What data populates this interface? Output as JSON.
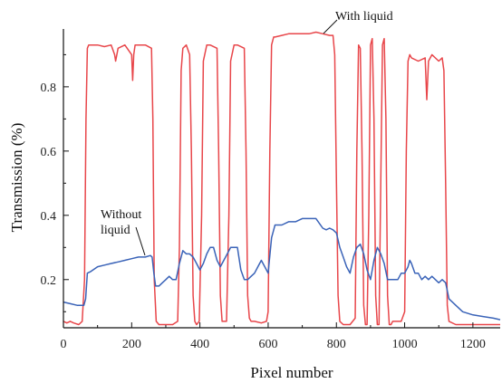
{
  "chart_data": {
    "type": "line",
    "title": "",
    "xlabel": "Pixel number",
    "ylabel": "Transmission (%)",
    "xlim": [
      0,
      1280
    ],
    "ylim": [
      0.05,
      0.98
    ],
    "xticks": [
      0,
      200,
      400,
      600,
      800,
      1000,
      1200
    ],
    "yticks": [
      0.2,
      0.4,
      0.6,
      0.8
    ],
    "xtick_labels": [
      "0",
      "200",
      "400",
      "600",
      "800",
      "1000",
      "1200"
    ],
    "ytick_labels": [
      "0.2",
      "0.4",
      "0.6",
      "0.8"
    ],
    "grid": false,
    "legend": "none",
    "annotations": [
      {
        "text": "With liquid",
        "series": "with"
      },
      {
        "lines": [
          "Without",
          "liquid"
        ],
        "series": "without"
      }
    ],
    "series": [
      {
        "key": "with",
        "color": "#e8464a",
        "x": [
          0,
          10,
          20,
          30,
          45,
          55,
          62,
          66,
          70,
          74,
          80,
          100,
          120,
          140,
          150,
          153,
          160,
          180,
          200,
          203,
          206,
          210,
          220,
          240,
          258,
          262,
          266,
          272,
          280,
          300,
          320,
          335,
          340,
          345,
          350,
          360,
          370,
          375,
          380,
          385,
          390,
          398,
          405,
          410,
          420,
          430,
          450,
          455,
          460,
          465,
          470,
          478,
          485,
          490,
          500,
          510,
          530,
          535,
          540,
          545,
          550,
          560,
          580,
          595,
          600,
          605,
          610,
          616,
          620,
          640,
          660,
          680,
          700,
          720,
          740,
          760,
          780,
          790,
          795,
          800,
          805,
          810,
          820,
          840,
          855,
          860,
          865,
          870,
          875,
          880,
          885,
          890,
          895,
          900,
          905,
          910,
          915,
          920,
          925,
          930,
          935,
          940,
          945,
          950,
          955,
          960,
          965,
          970,
          975,
          980,
          990,
          1000,
          1005,
          1010,
          1015,
          1020,
          1040,
          1060,
          1065,
          1070,
          1080,
          1100,
          1110,
          1115,
          1120,
          1125,
          1130,
          1150,
          1200,
          1250,
          1280
        ],
        "y": [
          0.07,
          0.065,
          0.07,
          0.065,
          0.06,
          0.07,
          0.2,
          0.7,
          0.92,
          0.93,
          0.93,
          0.93,
          0.925,
          0.93,
          0.9,
          0.88,
          0.92,
          0.93,
          0.9,
          0.82,
          0.9,
          0.93,
          0.93,
          0.93,
          0.92,
          0.7,
          0.2,
          0.07,
          0.06,
          0.06,
          0.06,
          0.07,
          0.3,
          0.85,
          0.92,
          0.93,
          0.9,
          0.6,
          0.15,
          0.07,
          0.06,
          0.07,
          0.4,
          0.88,
          0.93,
          0.93,
          0.92,
          0.6,
          0.15,
          0.07,
          0.07,
          0.07,
          0.4,
          0.88,
          0.93,
          0.93,
          0.92,
          0.6,
          0.15,
          0.08,
          0.07,
          0.07,
          0.065,
          0.07,
          0.1,
          0.6,
          0.93,
          0.955,
          0.955,
          0.96,
          0.965,
          0.965,
          0.965,
          0.965,
          0.97,
          0.965,
          0.96,
          0.96,
          0.9,
          0.5,
          0.15,
          0.07,
          0.06,
          0.06,
          0.08,
          0.6,
          0.93,
          0.92,
          0.6,
          0.12,
          0.06,
          0.06,
          0.4,
          0.93,
          0.95,
          0.7,
          0.15,
          0.06,
          0.06,
          0.5,
          0.93,
          0.95,
          0.7,
          0.15,
          0.06,
          0.06,
          0.07,
          0.07,
          0.07,
          0.07,
          0.07,
          0.1,
          0.6,
          0.88,
          0.9,
          0.89,
          0.88,
          0.89,
          0.76,
          0.88,
          0.9,
          0.88,
          0.89,
          0.85,
          0.5,
          0.12,
          0.07,
          0.06,
          0.06,
          0.06,
          0.06
        ]
      },
      {
        "key": "without",
        "color": "#3a63b8",
        "x": [
          0,
          20,
          40,
          60,
          65,
          70,
          80,
          100,
          120,
          140,
          160,
          180,
          200,
          220,
          240,
          255,
          260,
          265,
          270,
          280,
          290,
          300,
          310,
          320,
          330,
          340,
          350,
          360,
          370,
          380,
          390,
          400,
          410,
          420,
          430,
          440,
          450,
          460,
          470,
          480,
          490,
          500,
          510,
          520,
          530,
          540,
          550,
          560,
          570,
          580,
          590,
          600,
          610,
          620,
          630,
          640,
          660,
          680,
          700,
          720,
          740,
          760,
          770,
          780,
          790,
          800,
          810,
          820,
          830,
          840,
          850,
          860,
          870,
          880,
          890,
          900,
          910,
          920,
          930,
          940,
          950,
          960,
          970,
          980,
          990,
          1000,
          1010,
          1015,
          1020,
          1030,
          1040,
          1050,
          1060,
          1070,
          1080,
          1090,
          1100,
          1110,
          1120,
          1130,
          1150,
          1170,
          1200,
          1230,
          1260,
          1280
        ],
        "y": [
          0.13,
          0.125,
          0.12,
          0.12,
          0.14,
          0.22,
          0.225,
          0.24,
          0.245,
          0.25,
          0.255,
          0.26,
          0.265,
          0.27,
          0.27,
          0.275,
          0.27,
          0.22,
          0.18,
          0.18,
          0.19,
          0.2,
          0.21,
          0.2,
          0.2,
          0.25,
          0.29,
          0.28,
          0.28,
          0.27,
          0.25,
          0.23,
          0.25,
          0.28,
          0.3,
          0.3,
          0.26,
          0.24,
          0.26,
          0.28,
          0.3,
          0.3,
          0.3,
          0.23,
          0.2,
          0.2,
          0.21,
          0.22,
          0.24,
          0.26,
          0.24,
          0.22,
          0.33,
          0.37,
          0.37,
          0.37,
          0.38,
          0.38,
          0.39,
          0.39,
          0.39,
          0.36,
          0.355,
          0.36,
          0.355,
          0.345,
          0.3,
          0.27,
          0.24,
          0.22,
          0.27,
          0.3,
          0.31,
          0.28,
          0.23,
          0.2,
          0.26,
          0.3,
          0.28,
          0.25,
          0.2,
          0.2,
          0.2,
          0.2,
          0.22,
          0.22,
          0.24,
          0.26,
          0.25,
          0.22,
          0.22,
          0.2,
          0.21,
          0.2,
          0.21,
          0.2,
          0.19,
          0.2,
          0.19,
          0.14,
          0.12,
          0.1,
          0.09,
          0.085,
          0.08,
          0.075
        ]
      }
    ]
  }
}
